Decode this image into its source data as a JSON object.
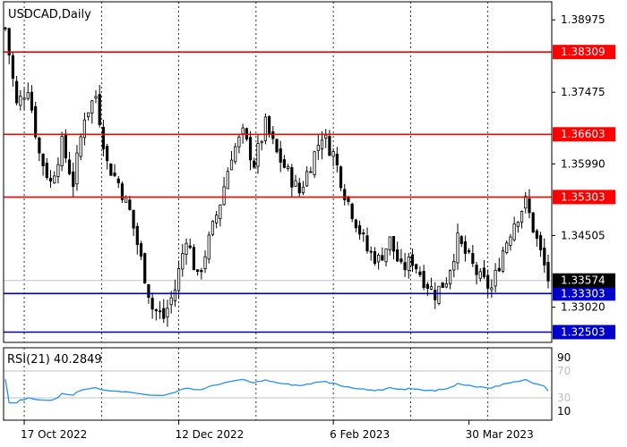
{
  "chart_data": {
    "type": "candlestick",
    "title": "USDCAD,Daily",
    "price_axis": {
      "ylim": [
        1.3229,
        1.3935
      ],
      "tick_labels": [
        "1.38975",
        "1.37475",
        "1.35990",
        "1.34505",
        "1.33020"
      ],
      "tick_values": [
        1.38975,
        1.37475,
        1.3599,
        1.34505,
        1.3302
      ]
    },
    "current_price": {
      "value": 1.33574,
      "label": "1.33574"
    },
    "levels": [
      {
        "value": 1.38309,
        "label": "1.38309",
        "color": "#ff0000"
      },
      {
        "value": 1.36603,
        "label": "1.36603",
        "color": "#ff0000"
      },
      {
        "value": 1.35303,
        "label": "1.35303",
        "color": "#ff0000"
      },
      {
        "value": 1.33303,
        "label": "1.33303",
        "color": "#0000cd"
      },
      {
        "value": 1.32503,
        "label": "1.32503",
        "color": "#0000cd"
      }
    ],
    "x_labels": [
      "17 Oct 2022",
      "12 Dec 2022",
      "6 Feb 2023",
      "30 Mar 2023"
    ],
    "candle_count": 145,
    "close_path": [
      [
        0,
        1.388
      ],
      [
        3,
        1.372
      ],
      [
        6,
        1.376
      ],
      [
        9,
        1.362
      ],
      [
        12,
        1.356
      ],
      [
        15,
        1.364
      ],
      [
        18,
        1.356
      ],
      [
        21,
        1.37
      ],
      [
        24,
        1.374
      ],
      [
        27,
        1.36
      ],
      [
        30,
        1.356
      ],
      [
        33,
        1.35
      ],
      [
        36,
        1.34
      ],
      [
        39,
        1.33
      ],
      [
        42,
        1.328
      ],
      [
        45,
        1.334
      ],
      [
        48,
        1.345
      ],
      [
        51,
        1.336
      ],
      [
        54,
        1.344
      ],
      [
        57,
        1.352
      ],
      [
        60,
        1.362
      ],
      [
        63,
        1.366
      ],
      [
        66,
        1.36
      ],
      [
        69,
        1.368
      ],
      [
        72,
        1.362
      ],
      [
        75,
        1.358
      ],
      [
        78,
        1.354
      ],
      [
        81,
        1.36
      ],
      [
        84,
        1.366
      ],
      [
        87,
        1.362
      ],
      [
        90,
        1.354
      ],
      [
        93,
        1.348
      ],
      [
        96,
        1.342
      ],
      [
        99,
        1.34
      ],
      [
        102,
        1.344
      ],
      [
        105,
        1.338
      ],
      [
        108,
        1.34
      ],
      [
        111,
        1.336
      ],
      [
        114,
        1.333
      ],
      [
        117,
        1.336
      ],
      [
        120,
        1.344
      ],
      [
        123,
        1.34
      ],
      [
        126,
        1.336
      ],
      [
        129,
        1.334
      ],
      [
        132,
        1.342
      ],
      [
        135,
        1.348
      ],
      [
        138,
        1.352
      ],
      [
        141,
        1.344
      ],
      [
        144,
        1.336
      ]
    ],
    "rsi": {
      "label": "RSI(21) 40.2849",
      "ylim": [
        0,
        100
      ],
      "levels": [
        70,
        30
      ],
      "axis_labels": [
        "90",
        "10"
      ],
      "level_labels": [
        "70",
        "30"
      ],
      "current": 40.2849
    },
    "colors": {
      "candle": "#000000",
      "grid": "#000000",
      "rsi_line": "#1e90ff",
      "current_price_line": "#c0c0c0"
    }
  }
}
